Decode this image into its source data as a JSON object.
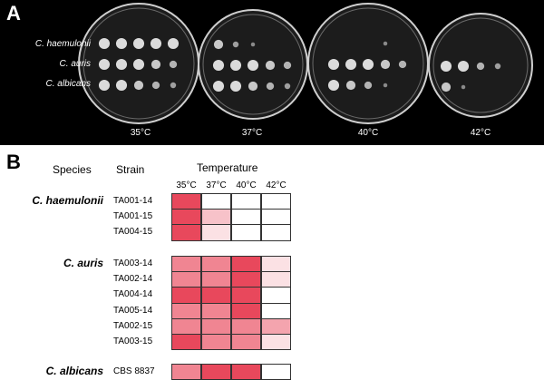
{
  "panel_a": {
    "letter": "A",
    "plate_labels": [
      "C. haemulonii",
      "C. auris",
      "C. albicans"
    ],
    "temperatures": [
      "35°C",
      "37°C",
      "40°C",
      "42°C"
    ],
    "background_color": "#000000"
  },
  "panel_b": {
    "letter": "B",
    "col_species": "Species",
    "col_strain": "Strain",
    "col_temperature": "Temperature",
    "temp_columns": [
      "35°C",
      "37°C",
      "40°C",
      "42°C"
    ],
    "groups": [
      {
        "species": "C. haemulonii",
        "rows": [
          {
            "strain": "TA001-14",
            "levels": [
              3,
              0,
              0,
              0
            ]
          },
          {
            "strain": "TA001-15",
            "levels": [
              3,
              1,
              0,
              0
            ]
          },
          {
            "strain": "TA004-15",
            "levels": [
              3,
              0.5,
              0,
              0
            ]
          }
        ]
      },
      {
        "species": "C. auris",
        "rows": [
          {
            "strain": "TA003-14",
            "levels": [
              2,
              2,
              3,
              0.5
            ]
          },
          {
            "strain": "TA002-14",
            "levels": [
              2,
              2,
              3,
              0.5
            ]
          },
          {
            "strain": "TA004-14",
            "levels": [
              3,
              3,
              3,
              0
            ]
          },
          {
            "strain": "TA005-14",
            "levels": [
              2,
              2,
              3,
              0
            ]
          },
          {
            "strain": "TA002-15",
            "levels": [
              2,
              2,
              2,
              1.5
            ]
          },
          {
            "strain": "TA003-15",
            "levels": [
              3,
              2,
              2,
              0.5
            ]
          }
        ]
      },
      {
        "species": "C. albicans",
        "rows": [
          {
            "strain": "CBS 8837",
            "levels": [
              2,
              3,
              3,
              0
            ]
          }
        ]
      }
    ],
    "colors": {
      "max": "#e8485c",
      "border": "#333333"
    }
  }
}
